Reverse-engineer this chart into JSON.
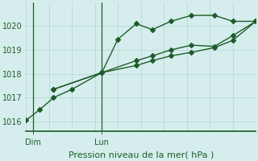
{
  "title": "Pression niveau de la mer( hPa )",
  "background_color": "#d5eeed",
  "grid_color": "#b8d8d5",
  "line_color": "#1e5c2a",
  "text_color": "#1e5c2a",
  "axis_color": "#1e5c2a",
  "ylim": [
    1015.6,
    1021.0
  ],
  "yticks": [
    1016,
    1017,
    1018,
    1019,
    1020
  ],
  "xlim": [
    0,
    10
  ],
  "xtick_positions": [
    0.3,
    3.3
  ],
  "xtick_labels": [
    "Dim",
    "Lun"
  ],
  "series1_x": [
    0,
    0.6,
    1.2,
    2.0,
    3.3,
    4.0,
    4.8,
    5.5,
    6.3,
    7.2,
    8.2,
    9.0,
    10.0
  ],
  "series1_y": [
    1016.05,
    1016.5,
    1017.0,
    1017.35,
    1018.05,
    1019.45,
    1020.1,
    1019.85,
    1020.2,
    1020.45,
    1020.45,
    1020.2,
    1020.2
  ],
  "series2_x": [
    1.2,
    3.3,
    4.8,
    5.5,
    6.3,
    7.2,
    8.2,
    9.0,
    10.0
  ],
  "series2_y": [
    1017.35,
    1018.05,
    1018.55,
    1018.75,
    1019.0,
    1019.2,
    1019.15,
    1019.6,
    1020.2
  ],
  "series3_x": [
    1.2,
    3.3,
    4.8,
    5.5,
    6.3,
    7.2,
    8.2,
    9.0,
    10.0
  ],
  "series3_y": [
    1017.35,
    1018.05,
    1018.35,
    1018.55,
    1018.75,
    1018.9,
    1019.1,
    1019.4,
    1020.2
  ],
  "marker_size": 3.0,
  "linewidth": 1.0,
  "xlabel_fontsize": 8,
  "tick_fontsize": 7
}
